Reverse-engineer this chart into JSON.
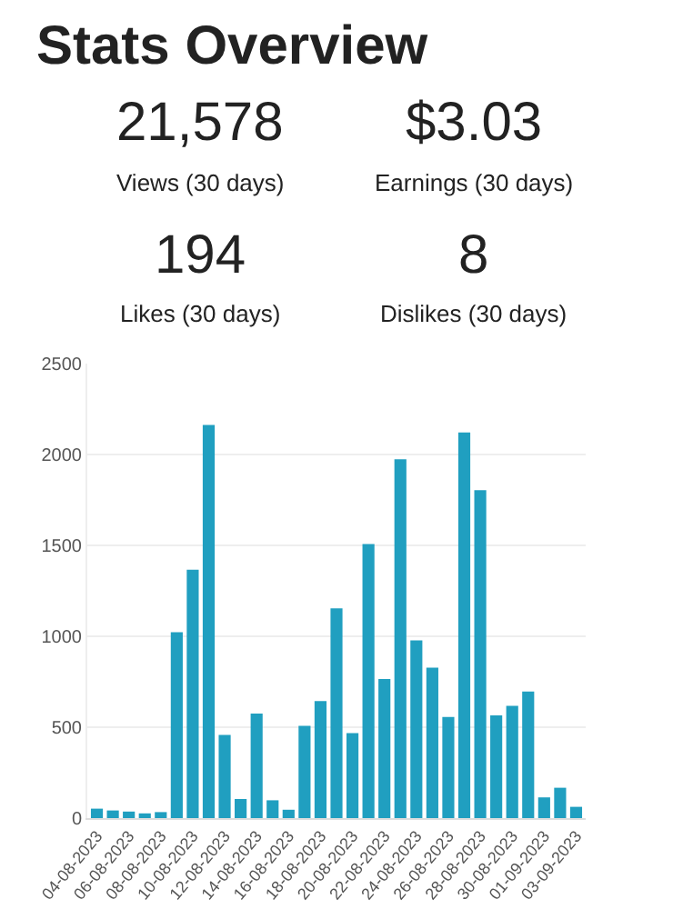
{
  "chart_data": [
    {
      "type": "other",
      "title": "Stats Overview",
      "annotations": [
        "21,578",
        "$3.03",
        "Views (30 days)",
        "Earnings (30 days)",
        "194",
        "8",
        "Likes (30 days)",
        "Dislikes (30 days)"
      ]
    },
    {
      "type": "bar",
      "categories": [
        "04-08-2023",
        null,
        "06-08-2023",
        null,
        "08-08-2023",
        null,
        "10-08-2023",
        null,
        "12-08-2023",
        null,
        "14-08-2023",
        null,
        "16-08-2023",
        null,
        "18-08-2023",
        null,
        "20-08-2023",
        null,
        "22-08-2023",
        null,
        "24-08-2023",
        null,
        "26-08-2023",
        null,
        "28-08-2023",
        null,
        "30-08-2023",
        null,
        "01-09-2023",
        null,
        "03-09-2023"
      ],
      "values": [
        52,
        42,
        36,
        26,
        33,
        1023,
        1366,
        2163,
        458,
        105,
        575,
        98,
        46,
        507,
        644,
        1154,
        467,
        1507,
        765,
        1974,
        977,
        827,
        556,
        2121,
        1804,
        565,
        618,
        696,
        114,
        167,
        62
      ],
      "color": "#209fc0",
      "ylim": [
        0,
        2500
      ],
      "yticks": [
        0,
        500,
        1000,
        1500,
        2000,
        2500
      ],
      "grid": "y"
    }
  ]
}
